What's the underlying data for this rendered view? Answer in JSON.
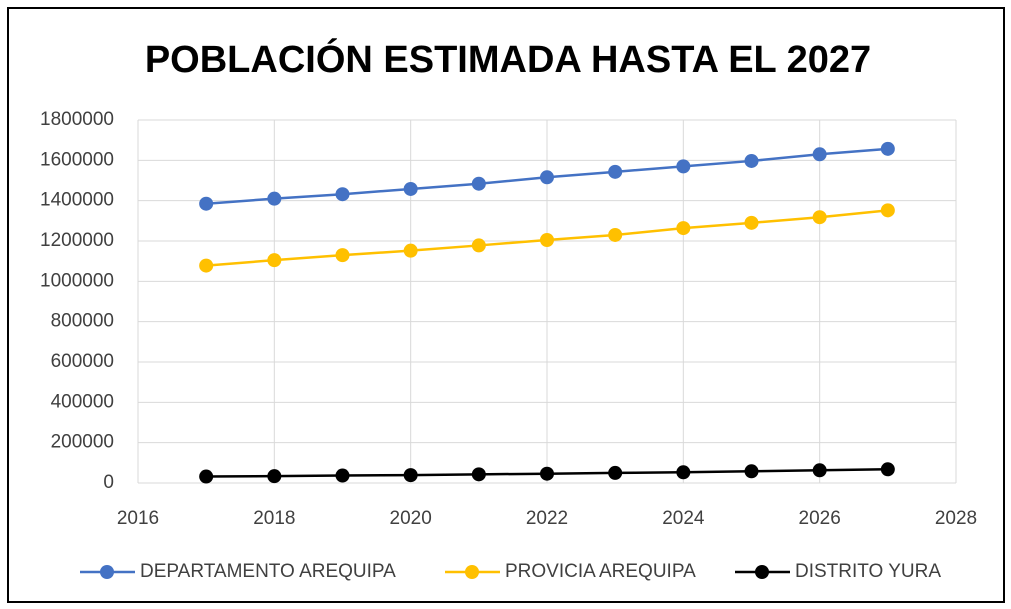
{
  "chart_data": {
    "type": "line",
    "title": "POBLACIÓN ESTIMADA HASTA EL 2027",
    "x": [
      2017,
      2018,
      2019,
      2020,
      2021,
      2022,
      2023,
      2024,
      2025,
      2026,
      2027
    ],
    "series": [
      {
        "name": "DEPARTAMENTO AREQUIPA",
        "color": "#4472c4",
        "values": [
          1385000,
          1410000,
          1432000,
          1458000,
          1484000,
          1516000,
          1543000,
          1570000,
          1597000,
          1630000,
          1657000
        ]
      },
      {
        "name": "PROVICIA AREQUIPA",
        "color": "#ffc000",
        "values": [
          1078000,
          1105000,
          1130000,
          1152000,
          1178000,
          1205000,
          1230000,
          1264000,
          1290000,
          1318000,
          1352000
        ]
      },
      {
        "name": "DISTRITO YURA",
        "color": "#000000",
        "values": [
          32000,
          34000,
          37000,
          39000,
          43000,
          46000,
          50000,
          53000,
          58000,
          63000,
          68000
        ]
      }
    ],
    "xlim": [
      2016,
      2028
    ],
    "xticks": [
      2016,
      2018,
      2020,
      2022,
      2024,
      2026,
      2028
    ],
    "ylim": [
      0,
      1800000
    ],
    "yticks": [
      0,
      200000,
      400000,
      600000,
      800000,
      1000000,
      1200000,
      1400000,
      1600000,
      1800000
    ],
    "grid": true,
    "legend": "bottom"
  }
}
